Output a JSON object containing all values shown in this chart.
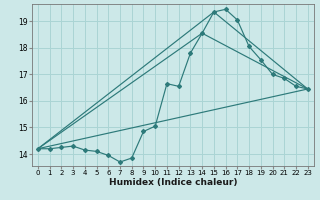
{
  "xlabel": "Humidex (Indice chaleur)",
  "bg_color": "#cce8e8",
  "grid_color": "#aad4d4",
  "line_color": "#2d7a7a",
  "xlim": [
    -0.5,
    23.5
  ],
  "ylim": [
    13.55,
    19.65
  ],
  "xticks": [
    0,
    1,
    2,
    3,
    4,
    5,
    6,
    7,
    8,
    9,
    10,
    11,
    12,
    13,
    14,
    15,
    16,
    17,
    18,
    19,
    20,
    21,
    22,
    23
  ],
  "yticks": [
    14,
    15,
    16,
    17,
    18,
    19
  ],
  "line1_x": [
    0,
    1,
    2,
    3,
    4,
    5,
    6,
    7,
    8,
    9,
    10,
    11,
    12,
    13,
    14,
    15,
    16,
    17,
    18,
    19,
    20,
    21,
    22,
    23
  ],
  "line1_y": [
    14.2,
    14.2,
    14.25,
    14.3,
    14.15,
    14.1,
    13.95,
    13.7,
    13.85,
    14.85,
    15.05,
    16.65,
    16.55,
    17.8,
    18.55,
    19.35,
    19.45,
    19.05,
    18.05,
    17.55,
    17.0,
    16.85,
    16.55,
    16.45
  ],
  "line2_x": [
    0,
    23
  ],
  "line2_y": [
    14.2,
    16.45
  ],
  "line3_x": [
    0,
    15,
    23
  ],
  "line3_y": [
    14.2,
    19.35,
    16.45
  ],
  "line4_x": [
    0,
    14,
    23
  ],
  "line4_y": [
    14.2,
    18.55,
    16.45
  ]
}
